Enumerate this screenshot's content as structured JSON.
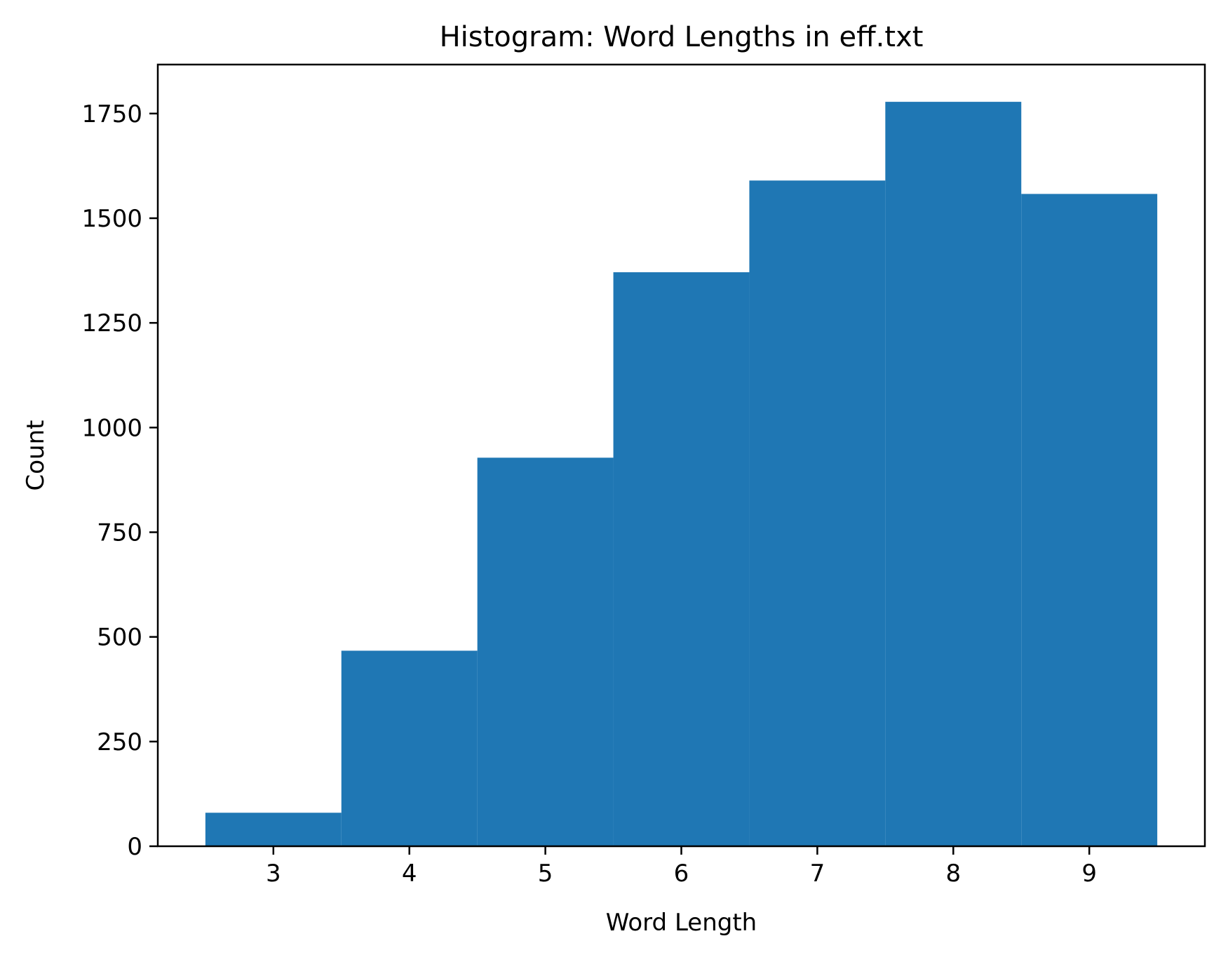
{
  "chart_data": {
    "type": "bar",
    "title": "Histogram: Word Lengths in eff.txt",
    "xlabel": "Word Length",
    "ylabel": "Count",
    "categories": [
      "3",
      "4",
      "5",
      "6",
      "7",
      "8",
      "9"
    ],
    "bins": [
      {
        "x_start": 2.5,
        "x_end": 3.5,
        "value": 80
      },
      {
        "x_start": 3.5,
        "x_end": 4.5,
        "value": 467
      },
      {
        "x_start": 4.5,
        "x_end": 5.5,
        "value": 928
      },
      {
        "x_start": 5.5,
        "x_end": 6.5,
        "value": 1371
      },
      {
        "x_start": 6.5,
        "x_end": 7.5,
        "value": 1590
      },
      {
        "x_start": 7.5,
        "x_end": 8.5,
        "value": 1778
      },
      {
        "x_start": 8.5,
        "x_end": 9.5,
        "value": 1558
      }
    ],
    "xlim": [
      2.15,
      9.85
    ],
    "ylim": [
      0,
      1867
    ],
    "xticks": [
      3,
      4,
      5,
      6,
      7,
      8,
      9
    ],
    "yticks": [
      0,
      250,
      500,
      750,
      1000,
      1250,
      1500,
      1750
    ],
    "grid": false,
    "bar_color": "#1f77b4"
  }
}
